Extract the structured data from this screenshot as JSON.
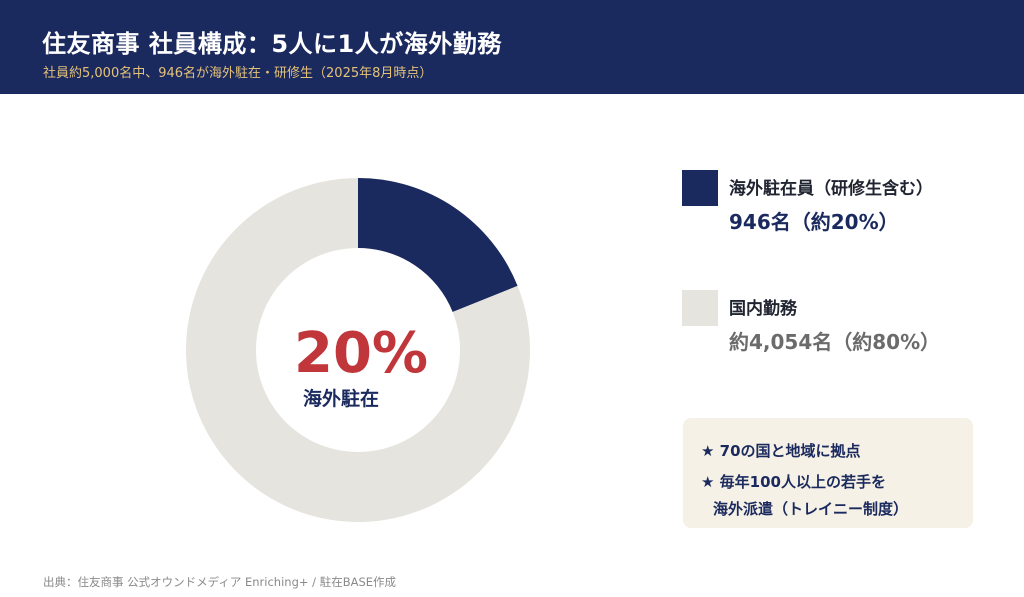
{
  "header": {
    "title": "住友商事 社員構成：5人に1人が海外勤務",
    "subtitle": "社員約5,000名中、946名が海外駐在・研修生（2025年8月時点）"
  },
  "chart_data": {
    "type": "pie",
    "donut": true,
    "slices": [
      {
        "label": "海外駐在員（研修生含む）",
        "value": 946,
        "percent": 20,
        "color": "#1b2a5e"
      },
      {
        "label": "国内勤務",
        "value": 4054,
        "percent": 80,
        "color": "#e6e4df"
      }
    ],
    "center_text": "20%",
    "center_label": "海外駐在"
  },
  "legend": {
    "overseas_name": "海外駐在員（研修生含む）",
    "overseas_value": "946名（約20%）",
    "overseas_value_color": "#1b2a5e",
    "domestic_name": "国内勤務",
    "domestic_value": "約4,054名（約80%）",
    "domestic_value_color": "#6b6b6b"
  },
  "notes": {
    "line1": "★ 70の国と地域に拠点",
    "line2": "★ 毎年100人以上の若手を",
    "line3": "海外派遣（トレイニー制度）"
  },
  "source": "出典：住友商事 公式オウンドメディア Enriching+ / 駐在BASE作成"
}
